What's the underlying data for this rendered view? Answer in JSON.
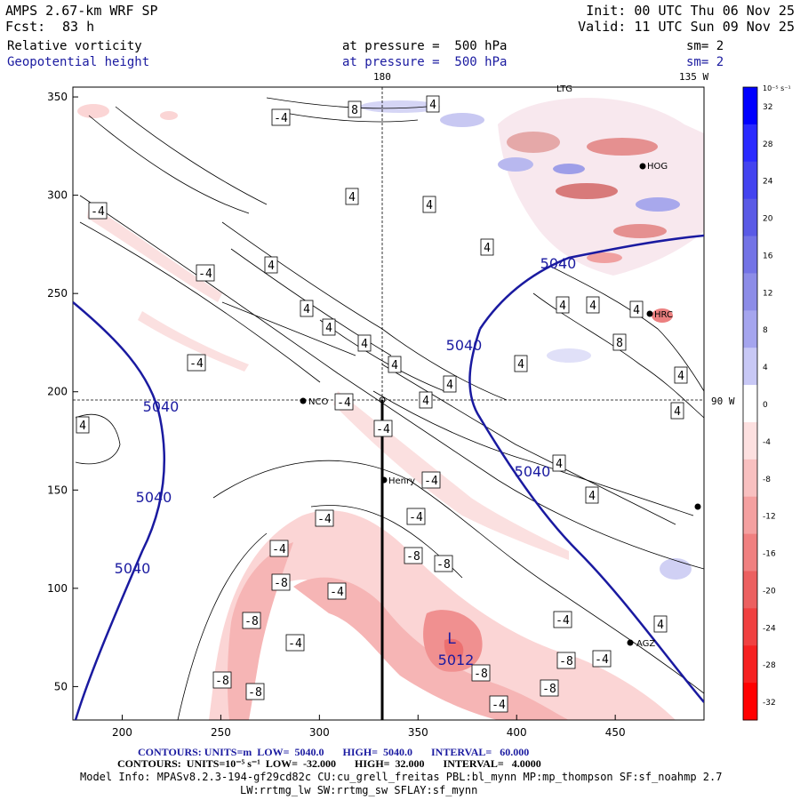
{
  "header": {
    "model": "AMPS 2.67-km WRF SP",
    "init": "Init: 00 UTC Thu 06 Nov 25",
    "fcst_label": "Fcst:",
    "fcst_value": "83 h",
    "valid": "Valid: 11 UTC Sun 09 Nov 25",
    "field1": "Relative vorticity",
    "field2": "Geopotential height",
    "pressure1": "at pressure =  500 hPa",
    "pressure2": "at pressure =  500 hPa",
    "sm1": "sm= 2",
    "sm2": "sm= 2"
  },
  "map": {
    "lon_180": "180",
    "lon_135w": "135 W",
    "lat_90w": "90 W",
    "x_ticks": [
      "200",
      "250",
      "300",
      "350",
      "400",
      "450"
    ],
    "y_ticks": [
      "350",
      "300",
      "250",
      "200",
      "150",
      "100",
      "50"
    ],
    "stations": [
      "NCO",
      "Henry",
      "AGZ",
      "HRC",
      "HOG",
      "LTG"
    ],
    "height_label": "5040",
    "low_label": "L",
    "low_value": "5012",
    "vort_labels": [
      "4",
      "8",
      "-4",
      "-8"
    ]
  },
  "colorbar": {
    "unit": "10⁻⁵ s⁻¹",
    "ticks": [
      "32",
      "28",
      "24",
      "20",
      "16",
      "12",
      "8",
      "4",
      "0",
      "-4",
      "-8",
      "-12",
      "-16",
      "-20",
      "-24",
      "-28",
      "-32"
    ],
    "colors": [
      "#0000ff",
      "#2a2aff",
      "#4343f0",
      "#5a5ae6",
      "#7373e6",
      "#8c8ce8",
      "#a5a5ee",
      "#c8c8f5",
      "#ffffff",
      "#fde0e0",
      "#f8c0c0",
      "#f4a0a0",
      "#f08080",
      "#ec6060",
      "#f04040",
      "#f62020",
      "#ff0000"
    ]
  },
  "footer": {
    "contours1": "CONTOURS: UNITS=m  LOW=  5040.0       HIGH=  5040.0       INTERVAL=   60.000",
    "contours2": "CONTOURS:  UNITS=10⁻⁵ s⁻¹  LOW=  -32.000       HIGH=  32.000       INTERVAL=   4.0000",
    "model_info": "Model Info: MPASv8.2.3-194-gf29cd82c CU:cu_grell_freitas PBL:bl_mynn MP:mp_thompson SF:sf_noahmp 2.7",
    "model_info2": "LW:rrtmg_lw SW:rrtmg_sw SFLAY:sf_mynn"
  }
}
